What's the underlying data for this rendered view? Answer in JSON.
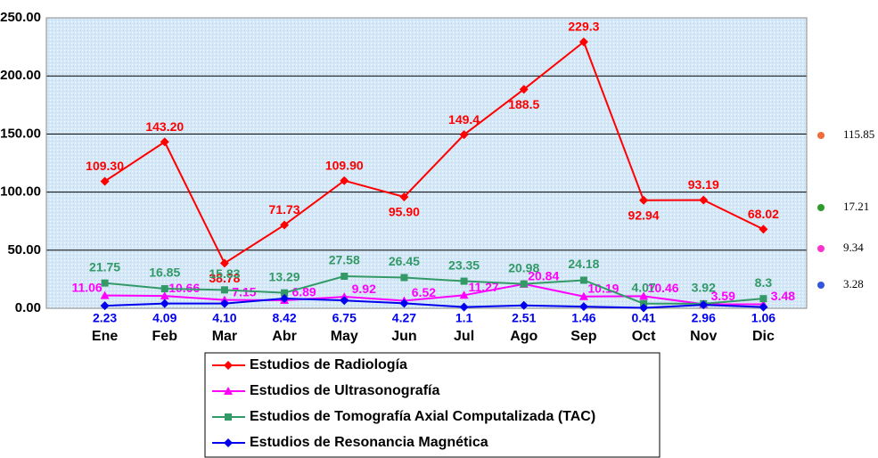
{
  "chart_data": {
    "type": "line",
    "categories": [
      "Ene",
      "Feb",
      "Mar",
      "Abr",
      "May",
      "Jun",
      "Jul",
      "Ago",
      "Sep",
      "Oct",
      "Nov",
      "Dic"
    ],
    "ylim": [
      0,
      250
    ],
    "yticks": [
      {
        "value": 0,
        "label": "0.00"
      },
      {
        "value": 50,
        "label": "50.00"
      },
      {
        "value": 100,
        "label": "100.00"
      },
      {
        "value": 150,
        "label": "150.00"
      },
      {
        "value": 200,
        "label": "200.00"
      },
      {
        "value": 250,
        "label": "250.00"
      }
    ],
    "grid": true,
    "series": [
      {
        "name": "Estudios de Radiología",
        "color": "#ff0000",
        "marker": "diamond",
        "values": [
          109.3,
          143.2,
          38.78,
          71.73,
          109.9,
          95.9,
          149.4,
          188.5,
          229.3,
          92.94,
          93.19,
          68.02
        ],
        "value_labels": [
          "109.30",
          "143.20",
          "38.78",
          "71.73",
          "109.90",
          "95.90",
          "149.4",
          "188.5",
          "229.3",
          "92.94",
          "93.19",
          "68.02"
        ]
      },
      {
        "name": "Estudios de Ultrasonografía",
        "color": "#ff00ff",
        "marker": "triangle",
        "values": [
          11.06,
          10.66,
          7.15,
          6.89,
          9.92,
          6.52,
          11.27,
          20.84,
          10.19,
          10.46,
          3.59,
          3.48
        ],
        "value_labels": [
          "11.06",
          "10.66",
          "7.15",
          "6.89",
          "9.92",
          "6.52",
          "11.27",
          "20.84",
          "10.19",
          "10.46",
          "3.59",
          "3.48"
        ]
      },
      {
        "name": "Estudios de Tomografía Axial Computalizada (TAC)",
        "color": "#339966",
        "marker": "square",
        "values": [
          21.75,
          16.85,
          15.83,
          13.29,
          27.58,
          26.45,
          23.35,
          20.98,
          24.18,
          4.07,
          3.92,
          8.3
        ],
        "value_labels": [
          "21.75",
          "16.85",
          "15.83",
          "13.29",
          "27.58",
          "26.45",
          "23.35",
          "20.98",
          "24.18",
          "4.07",
          "3.92",
          "8.3"
        ]
      },
      {
        "name": "Estudios de  Resonancia Magnética",
        "color": "#0000ee",
        "marker": "diamond",
        "values": [
          2.23,
          4.09,
          4.1,
          8.42,
          6.75,
          4.27,
          1.1,
          2.51,
          1.46,
          0.41,
          2.96,
          1.06
        ],
        "value_labels": [
          "2.23",
          "4.09",
          "4.10",
          "8.42",
          "6.75",
          "4.27",
          "1.1",
          "2.51",
          "1.46",
          "0.41",
          "2.96",
          "1.06"
        ]
      }
    ],
    "side_values": {
      "values": [
        115.85,
        17.21,
        9.34,
        3.28
      ],
      "colors": [
        "#f26b3a",
        "#2e9b2e",
        "#ff33cc",
        "#3355dd"
      ]
    }
  }
}
